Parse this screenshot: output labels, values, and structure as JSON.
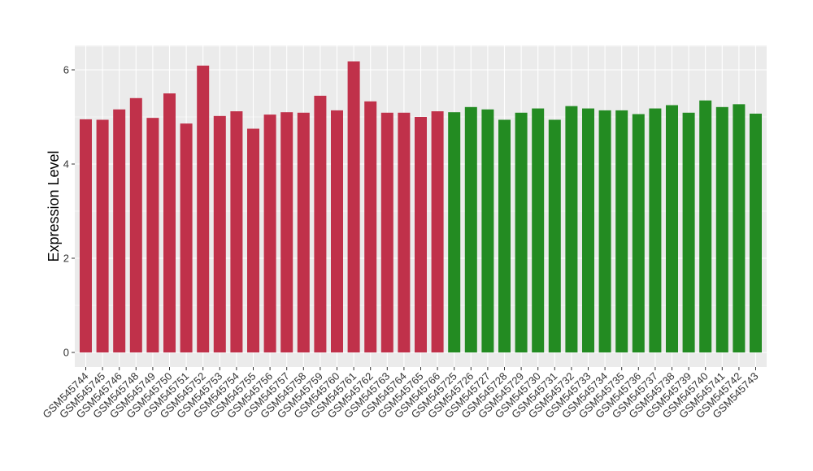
{
  "chart_data": {
    "type": "bar",
    "title": "",
    "xlabel": "",
    "ylabel": "Expression Level",
    "ylim": [
      0,
      6.5
    ],
    "yticks": [
      0,
      2,
      4,
      6
    ],
    "grid": true,
    "legend": "none",
    "colors": {
      "group_a": "#C0314A",
      "group_b": "#238B22",
      "panel": "#EBEBEB",
      "grid": "#FFFFFF"
    },
    "categories": [
      "GSM545744",
      "GSM545745",
      "GSM545746",
      "GSM545748",
      "GSM545749",
      "GSM545750",
      "GSM545751",
      "GSM545752",
      "GSM545753",
      "GSM545754",
      "GSM545755",
      "GSM545756",
      "GSM545757",
      "GSM545758",
      "GSM545759",
      "GSM545760",
      "GSM545761",
      "GSM545762",
      "GSM545763",
      "GSM545764",
      "GSM545765",
      "GSM545766",
      "GSM545725",
      "GSM545726",
      "GSM545727",
      "GSM545728",
      "GSM545729",
      "GSM545730",
      "GSM545731",
      "GSM545732",
      "GSM545733",
      "GSM545734",
      "GSM545735",
      "GSM545736",
      "GSM545737",
      "GSM545738",
      "GSM545739",
      "GSM545740",
      "GSM545741",
      "GSM545742",
      "GSM545743"
    ],
    "values": [
      4.95,
      4.94,
      5.16,
      5.4,
      4.98,
      5.5,
      4.86,
      6.09,
      5.02,
      5.12,
      4.75,
      5.05,
      5.1,
      5.09,
      5.45,
      5.14,
      6.18,
      5.33,
      5.09,
      5.09,
      5.0,
      5.12,
      5.1,
      5.21,
      5.16,
      4.94,
      5.09,
      5.18,
      4.94,
      5.23,
      5.18,
      5.14,
      5.14,
      5.06,
      5.18,
      5.25,
      5.09,
      5.35,
      5.21,
      5.27,
      5.07
    ],
    "bar_colors": [
      "group_a",
      "group_a",
      "group_a",
      "group_a",
      "group_a",
      "group_a",
      "group_a",
      "group_a",
      "group_a",
      "group_a",
      "group_a",
      "group_a",
      "group_a",
      "group_a",
      "group_a",
      "group_a",
      "group_a",
      "group_a",
      "group_a",
      "group_a",
      "group_a",
      "group_a",
      "group_b",
      "group_b",
      "group_b",
      "group_b",
      "group_b",
      "group_b",
      "group_b",
      "group_b",
      "group_b",
      "group_b",
      "group_b",
      "group_b",
      "group_b",
      "group_b",
      "group_b",
      "group_b",
      "group_b",
      "group_b",
      "group_b"
    ]
  }
}
